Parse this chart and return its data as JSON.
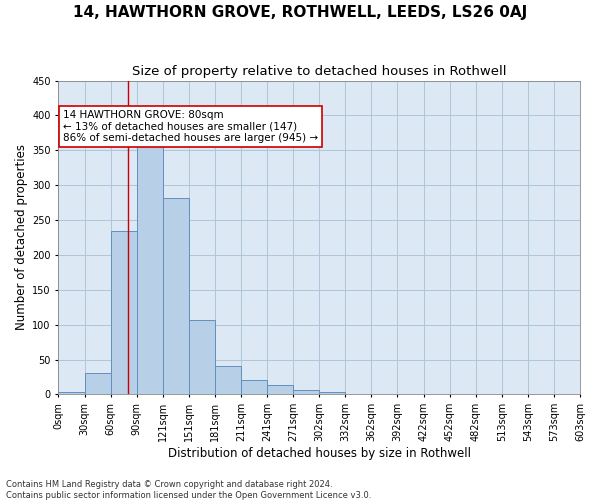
{
  "title": "14, HAWTHORN GROVE, ROTHWELL, LEEDS, LS26 0AJ",
  "subtitle": "Size of property relative to detached houses in Rothwell",
  "xlabel": "Distribution of detached houses by size in Rothwell",
  "ylabel": "Number of detached properties",
  "footer_line1": "Contains HM Land Registry data © Crown copyright and database right 2024.",
  "footer_line2": "Contains public sector information licensed under the Open Government Licence v3.0.",
  "bar_values": [
    4,
    31,
    235,
    362,
    281,
    107,
    41,
    20,
    14,
    6,
    4,
    1,
    0,
    1,
    0,
    0,
    1,
    0,
    0,
    0
  ],
  "bin_edges": [
    0,
    30,
    60,
    90,
    120,
    150,
    180,
    210,
    240,
    270,
    300,
    330,
    360,
    390,
    420,
    450,
    480,
    510,
    540,
    570,
    600
  ],
  "tick_labels": [
    "0sqm",
    "30sqm",
    "60sqm",
    "90sqm",
    "121sqm",
    "151sqm",
    "181sqm",
    "211sqm",
    "241sqm",
    "271sqm",
    "302sqm",
    "332sqm",
    "362sqm",
    "392sqm",
    "422sqm",
    "452sqm",
    "482sqm",
    "513sqm",
    "543sqm",
    "573sqm",
    "603sqm"
  ],
  "property_size": 80,
  "bar_facecolor": "#b8cfe8",
  "bar_edgecolor": "#6090c0",
  "redline_color": "#cc0000",
  "background_color": "#ffffff",
  "plot_bg_color": "#dce8f4",
  "grid_color": "#b0c4d8",
  "annotation_text": "14 HAWTHORN GROVE: 80sqm\n← 13% of detached houses are smaller (147)\n86% of semi-detached houses are larger (945) →",
  "annotation_box_edgecolor": "#cc0000",
  "ylim": [
    0,
    430
  ],
  "title_fontsize": 11,
  "subtitle_fontsize": 9.5,
  "axis_label_fontsize": 8.5,
  "tick_fontsize": 7,
  "annotation_fontsize": 7.5,
  "footer_fontsize": 6
}
